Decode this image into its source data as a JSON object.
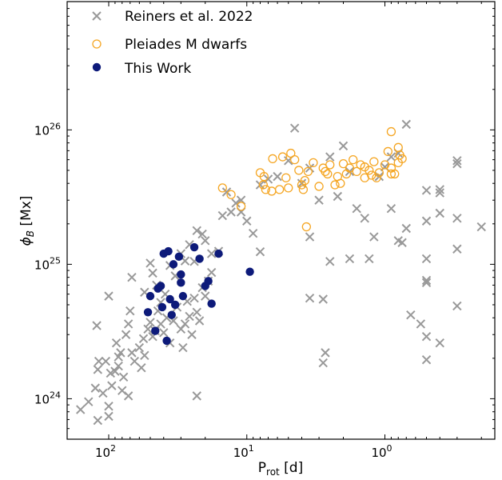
{
  "chart_data": {
    "type": "scatter",
    "x_scale": "log",
    "y_scale": "log",
    "x_reversed": true,
    "xlim": [
      0.16,
      200
    ],
    "ylim": [
      5e+23,
      9e+26
    ],
    "xlabel_main": "P",
    "xlabel_sub": "rot",
    "xlabel_unit": " [d]",
    "ylabel_main": "ϕ",
    "ylabel_sub": "B",
    "ylabel_unit": " [Mx]",
    "x_ticks": [
      {
        "value": 100,
        "base": "10",
        "exp": "2"
      },
      {
        "value": 10,
        "base": "10",
        "exp": "1"
      },
      {
        "value": 1,
        "base": "10",
        "exp": "0"
      }
    ],
    "y_ticks": [
      {
        "value": 1e+24,
        "base": "10",
        "exp": "24"
      },
      {
        "value": 1e+25,
        "base": "10",
        "exp": "25"
      },
      {
        "value": 1e+26,
        "base": "10",
        "exp": "26"
      }
    ],
    "legend_position": "top-left",
    "grid": false,
    "series": [
      {
        "name": "Reiners et al. 2022",
        "marker": "x",
        "color": "#999999",
        "points": [
          [
            160,
            8.3e+23
          ],
          [
            140,
            9.5e+23
          ],
          [
            125,
            1.2e+24
          ],
          [
            120,
            6.9e+23
          ],
          [
            110,
            1.1e+24
          ],
          [
            100,
            7.4e+23
          ],
          [
            100,
            8.8e+23
          ],
          [
            95,
            1.25e+24
          ],
          [
            90,
            1.6e+24
          ],
          [
            85,
            1.75e+24
          ],
          [
            80,
            1.15e+24
          ],
          [
            78,
            1.45e+24
          ],
          [
            72,
            1.05e+24
          ],
          [
            118,
            1.9e+24
          ],
          [
            120,
            1.65e+24
          ],
          [
            122,
            3.5e+24
          ],
          [
            105,
            1.9e+24
          ],
          [
            97,
            1.55e+24
          ],
          [
            88,
            2.6e+24
          ],
          [
            85,
            2.05e+24
          ],
          [
            82,
            2.2e+24
          ],
          [
            75,
            3e+24
          ],
          [
            72,
            3.6e+24
          ],
          [
            68,
            2.2e+24
          ],
          [
            65,
            1.9e+24
          ],
          [
            60,
            2.4e+24
          ],
          [
            58,
            1.7e+24
          ],
          [
            56,
            2.8e+24
          ],
          [
            55,
            2.1e+24
          ],
          [
            52,
            3.3e+24
          ],
          [
            50,
            3.7e+24
          ],
          [
            48,
            2.9e+24
          ],
          [
            46,
            3.2e+24
          ],
          [
            44,
            4.5e+24
          ],
          [
            42,
            3.6e+24
          ],
          [
            40,
            3.1e+24
          ],
          [
            38,
            4e+24
          ],
          [
            36,
            2.6e+24
          ],
          [
            34,
            3.8e+24
          ],
          [
            32,
            4.8e+24
          ],
          [
            30,
            3.3e+24
          ],
          [
            29,
            2.4e+24
          ],
          [
            28,
            3.6e+24
          ],
          [
            27,
            5.3e+24
          ],
          [
            26,
            4.1e+24
          ],
          [
            25,
            3e+24
          ],
          [
            24,
            5.6e+24
          ],
          [
            23,
            4.4e+24
          ],
          [
            22,
            3.8e+24
          ],
          [
            21,
            6.7e+24
          ],
          [
            20,
            5.8e+24
          ],
          [
            19,
            7.5e+24
          ],
          [
            18,
            8.7e+24
          ],
          [
            42,
            5.2e+24
          ],
          [
            100,
            5.8e+24
          ],
          [
            70,
            4.5e+24
          ],
          [
            68,
            8e+24
          ],
          [
            55,
            6.2e+24
          ],
          [
            50,
            1.02e+25
          ],
          [
            48,
            8.6e+24
          ],
          [
            45,
            7e+24
          ],
          [
            39,
            6e+24
          ],
          [
            36,
            9.8e+24
          ],
          [
            33,
            8.2e+24
          ],
          [
            30,
            1.2e+25
          ],
          [
            28,
            1.06e+25
          ],
          [
            26,
            1.4e+25
          ],
          [
            24,
            1.05e+25
          ],
          [
            23,
            1.78e+25
          ],
          [
            21,
            1.68e+25
          ],
          [
            20,
            1.5e+25
          ],
          [
            18,
            1.2e+25
          ],
          [
            16,
            1.25e+25
          ],
          [
            23,
            1.05e+24
          ],
          [
            15,
            2.3e+25
          ],
          [
            14,
            3.45e+25
          ],
          [
            13,
            2.45e+25
          ],
          [
            12,
            2.85e+25
          ],
          [
            11,
            2.45e+25
          ],
          [
            11,
            3e+25
          ],
          [
            10,
            2.1e+25
          ],
          [
            8,
            3.9e+25
          ],
          [
            7,
            4.3e+25
          ],
          [
            6,
            4.5e+25
          ],
          [
            5,
            5.9e+25
          ],
          [
            4.5,
            1.03e+26
          ],
          [
            4,
            4e+25
          ],
          [
            3.5,
            5.2e+25
          ],
          [
            3,
            3e+25
          ],
          [
            2.5,
            6.3e+25
          ],
          [
            2.2,
            3.2e+25
          ],
          [
            2.0,
            7.6e+25
          ],
          [
            1.8,
            4.9e+25
          ],
          [
            1.6,
            2.6e+25
          ],
          [
            1.4,
            2.2e+25
          ],
          [
            1.3,
            1.1e+25
          ],
          [
            1.2,
            1.6e+25
          ],
          [
            1.0,
            5.3e+25
          ],
          [
            0.9,
            2.6e+25
          ],
          [
            0.8,
            1.5e+25
          ],
          [
            0.75,
            1.45e+25
          ],
          [
            0.7,
            1.85e+25
          ],
          [
            0.9,
            6.3e+25
          ],
          [
            0.7,
            1.1e+26
          ],
          [
            0.8,
            6.7e+25
          ],
          [
            0.55,
            3.6e+24
          ],
          [
            1.1,
            4.5e+25
          ],
          [
            3.5,
            5.6e+24
          ],
          [
            3.5,
            1.6e+25
          ],
          [
            8,
            1.24e+25
          ],
          [
            9,
            1.7e+25
          ],
          [
            2.5,
            1.05e+25
          ],
          [
            2.8,
            5.5e+24
          ],
          [
            2.7,
            2.2e+24
          ],
          [
            2.8,
            1.85e+24
          ],
          [
            1.8,
            1.1e+25
          ],
          [
            0.5,
            2.1e+25
          ],
          [
            0.5,
            3.55e+25
          ],
          [
            0.5,
            1.1e+25
          ],
          [
            0.5,
            7.6e+24
          ],
          [
            0.5,
            7.3e+24
          ],
          [
            0.5,
            2.9e+24
          ],
          [
            0.5,
            1.95e+24
          ],
          [
            0.4,
            3.6e+25
          ],
          [
            0.4,
            3.4e+25
          ],
          [
            0.4,
            2.4e+25
          ],
          [
            0.4,
            2.6e+24
          ],
          [
            0.3,
            5.9e+25
          ],
          [
            0.3,
            5.6e+25
          ],
          [
            0.3,
            2.2e+25
          ],
          [
            0.3,
            1.3e+25
          ],
          [
            0.3,
            4.9e+24
          ],
          [
            0.2,
            1.9e+25
          ],
          [
            0.65,
            4.2e+24
          ]
        ]
      },
      {
        "name": "Pleiades M dwarfs",
        "marker": "open-circle",
        "color": "#f5a623",
        "points": [
          [
            15,
            3.7e+25
          ],
          [
            13,
            3.3e+25
          ],
          [
            11,
            2.7e+25
          ],
          [
            8,
            4.8e+25
          ],
          [
            7.5,
            4.5e+25
          ],
          [
            7.6,
            3.9e+25
          ],
          [
            7.3,
            3.6e+25
          ],
          [
            6.5,
            6.1e+25
          ],
          [
            6.6,
            3.5e+25
          ],
          [
            5.8,
            3.6e+25
          ],
          [
            5.5,
            6.3e+25
          ],
          [
            5.2,
            4.4e+25
          ],
          [
            5.0,
            3.7e+25
          ],
          [
            4.8,
            6.7e+25
          ],
          [
            4.5,
            6e+25
          ],
          [
            4.2,
            5e+25
          ],
          [
            4.0,
            3.9e+25
          ],
          [
            3.9,
            3.6e+25
          ],
          [
            3.8,
            4.2e+25
          ],
          [
            3.6,
            4.9e+25
          ],
          [
            3.3,
            5.7e+25
          ],
          [
            3.0,
            3.8e+25
          ],
          [
            2.8,
            5.2e+25
          ],
          [
            2.7,
            4.9e+25
          ],
          [
            2.6,
            4.7e+25
          ],
          [
            2.5,
            5.5e+25
          ],
          [
            2.3,
            3.9e+25
          ],
          [
            2.2,
            4.5e+25
          ],
          [
            2.1,
            4e+25
          ],
          [
            2.0,
            5.6e+25
          ],
          [
            1.9,
            4.7e+25
          ],
          [
            1.8,
            5.2e+25
          ],
          [
            1.7,
            6e+25
          ],
          [
            1.6,
            4.9e+25
          ],
          [
            1.5,
            5.5e+25
          ],
          [
            1.4,
            4.4e+25
          ],
          [
            1.3,
            5e+25
          ],
          [
            1.25,
            4.6e+25
          ],
          [
            1.2,
            5.8e+25
          ],
          [
            1.1,
            4.8e+25
          ],
          [
            1.0,
            5.5e+25
          ],
          [
            0.95,
            6.9e+25
          ],
          [
            0.9,
            5.2e+25
          ],
          [
            0.85,
            4.7e+25
          ],
          [
            0.8,
            5.7e+25
          ],
          [
            0.75,
            6.1e+25
          ],
          [
            0.9,
            9.7e+25
          ],
          [
            0.8,
            7.4e+25
          ],
          [
            0.78,
            6.5e+25
          ],
          [
            0.9,
            4.7e+25
          ],
          [
            3.7,
            1.9e+25
          ],
          [
            1.4,
            5.3e+25
          ],
          [
            1.15,
            4.4e+25
          ]
        ]
      },
      {
        "name": "This Work",
        "marker": "filled-circle",
        "color": "#0d1a7a",
        "points": [
          [
            52,
            4.4e+24
          ],
          [
            50,
            5.8e+24
          ],
          [
            46,
            3.2e+24
          ],
          [
            44,
            6.6e+24
          ],
          [
            42,
            6.9e+24
          ],
          [
            41,
            4.8e+24
          ],
          [
            40,
            1.2e+25
          ],
          [
            38,
            2.7e+24
          ],
          [
            37,
            1.25e+25
          ],
          [
            36,
            5.5e+24
          ],
          [
            35,
            4.2e+24
          ],
          [
            34,
            1e+25
          ],
          [
            33,
            5e+24
          ],
          [
            31,
            1.14e+25
          ],
          [
            30,
            8.4e+24
          ],
          [
            30,
            7.3e+24
          ],
          [
            29,
            5.8e+24
          ],
          [
            24,
            1.34e+25
          ],
          [
            22,
            1.1e+25
          ],
          [
            20,
            6.9e+24
          ],
          [
            19,
            7.5e+24
          ],
          [
            18,
            5.1e+24
          ],
          [
            16,
            1.2e+25
          ],
          [
            9.5,
            8.8e+24
          ]
        ]
      }
    ]
  }
}
